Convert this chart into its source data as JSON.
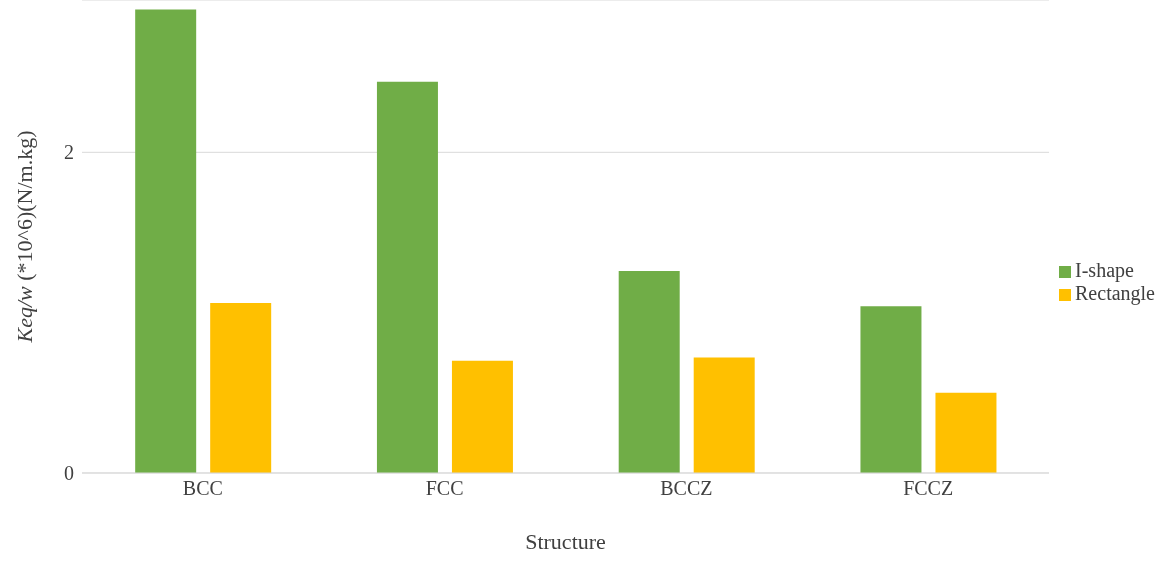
{
  "chart_data": {
    "type": "bar",
    "xlabel": "Structure",
    "ylabel": "Keq/w (*10^6)(N/m.kg)",
    "categories": [
      "BCC",
      "FCC",
      "BCCZ",
      "FCCZ"
    ],
    "series": [
      {
        "name": "I-shape",
        "color": "#70ad47",
        "values": [
          2.89,
          2.44,
          1.26,
          1.04
        ]
      },
      {
        "name": "Rectangle",
        "color": "#ffc000",
        "values": [
          1.06,
          0.7,
          0.72,
          0.5
        ]
      }
    ],
    "ylim": [
      0,
      2.95
    ],
    "yticks": [
      0,
      2
    ],
    "grid": "y",
    "legend": "right"
  }
}
